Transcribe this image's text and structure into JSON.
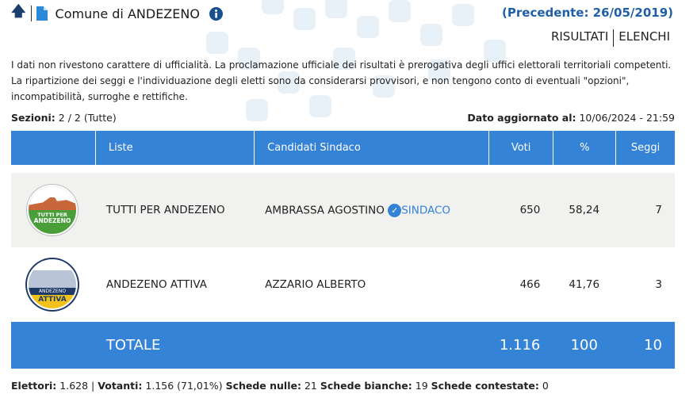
{
  "header": {
    "title": "Comune di ANDEZENO",
    "previous": "(Precedente: 26/05/2019)",
    "tabs": [
      "RISULTATI",
      "ELENCHI"
    ]
  },
  "disclaimer": "I dati non rivestono carattere di ufficialità. La proclamazione ufficiale dei risultati è prerogativa degli uffici elettorali territoriali competenti. La ripartizione dei seggi e l'individuazione degli eletti sono da considerarsi provvisori, e non tengono conto di eventuali \"opzioni\", incompatibilità, surroghe e rettifiche.",
  "sections": {
    "label": "Sezioni:",
    "value": "2 / 2 (Tutte)"
  },
  "updated": {
    "label": "Dato aggiornato al:",
    "value": "10/06/2024 - 21:59"
  },
  "table": {
    "columns": [
      "Liste",
      "Candidati Sindaco",
      "Voti",
      "%",
      "Seggi"
    ],
    "rows": [
      {
        "logo_text": [
          "TUTTI PER",
          "ANDEZENO"
        ],
        "list": "TUTTI PER ANDEZENO",
        "candidate": "AMBRASSA AGOSTINO",
        "badge": "SINDACO",
        "votes": "650",
        "pct": "58,24",
        "seats": "7"
      },
      {
        "logo_text": [
          "ANDEZENO",
          "ATTIVA"
        ],
        "list": "ANDEZENO ATTIVA",
        "candidate": "AZZARIO ALBERTO",
        "votes": "466",
        "pct": "41,76",
        "seats": "3"
      }
    ],
    "total": {
      "label": "TOTALE",
      "votes": "1.116",
      "pct": "100",
      "seats": "10"
    }
  },
  "footer": {
    "elettori_label": "Elettori:",
    "elettori": "1.628",
    "votanti_label": "Votanti:",
    "votanti": "1.156 (71,01%)",
    "nulle_label": "Schede nulle:",
    "nulle": "21",
    "bianche_label": "Schede bianche:",
    "bianche": "19",
    "contestate_label": "Schede contestate:",
    "contestate": "0"
  },
  "colors": {
    "accent": "#3583d6",
    "title_blue": "#1f5fa8"
  }
}
